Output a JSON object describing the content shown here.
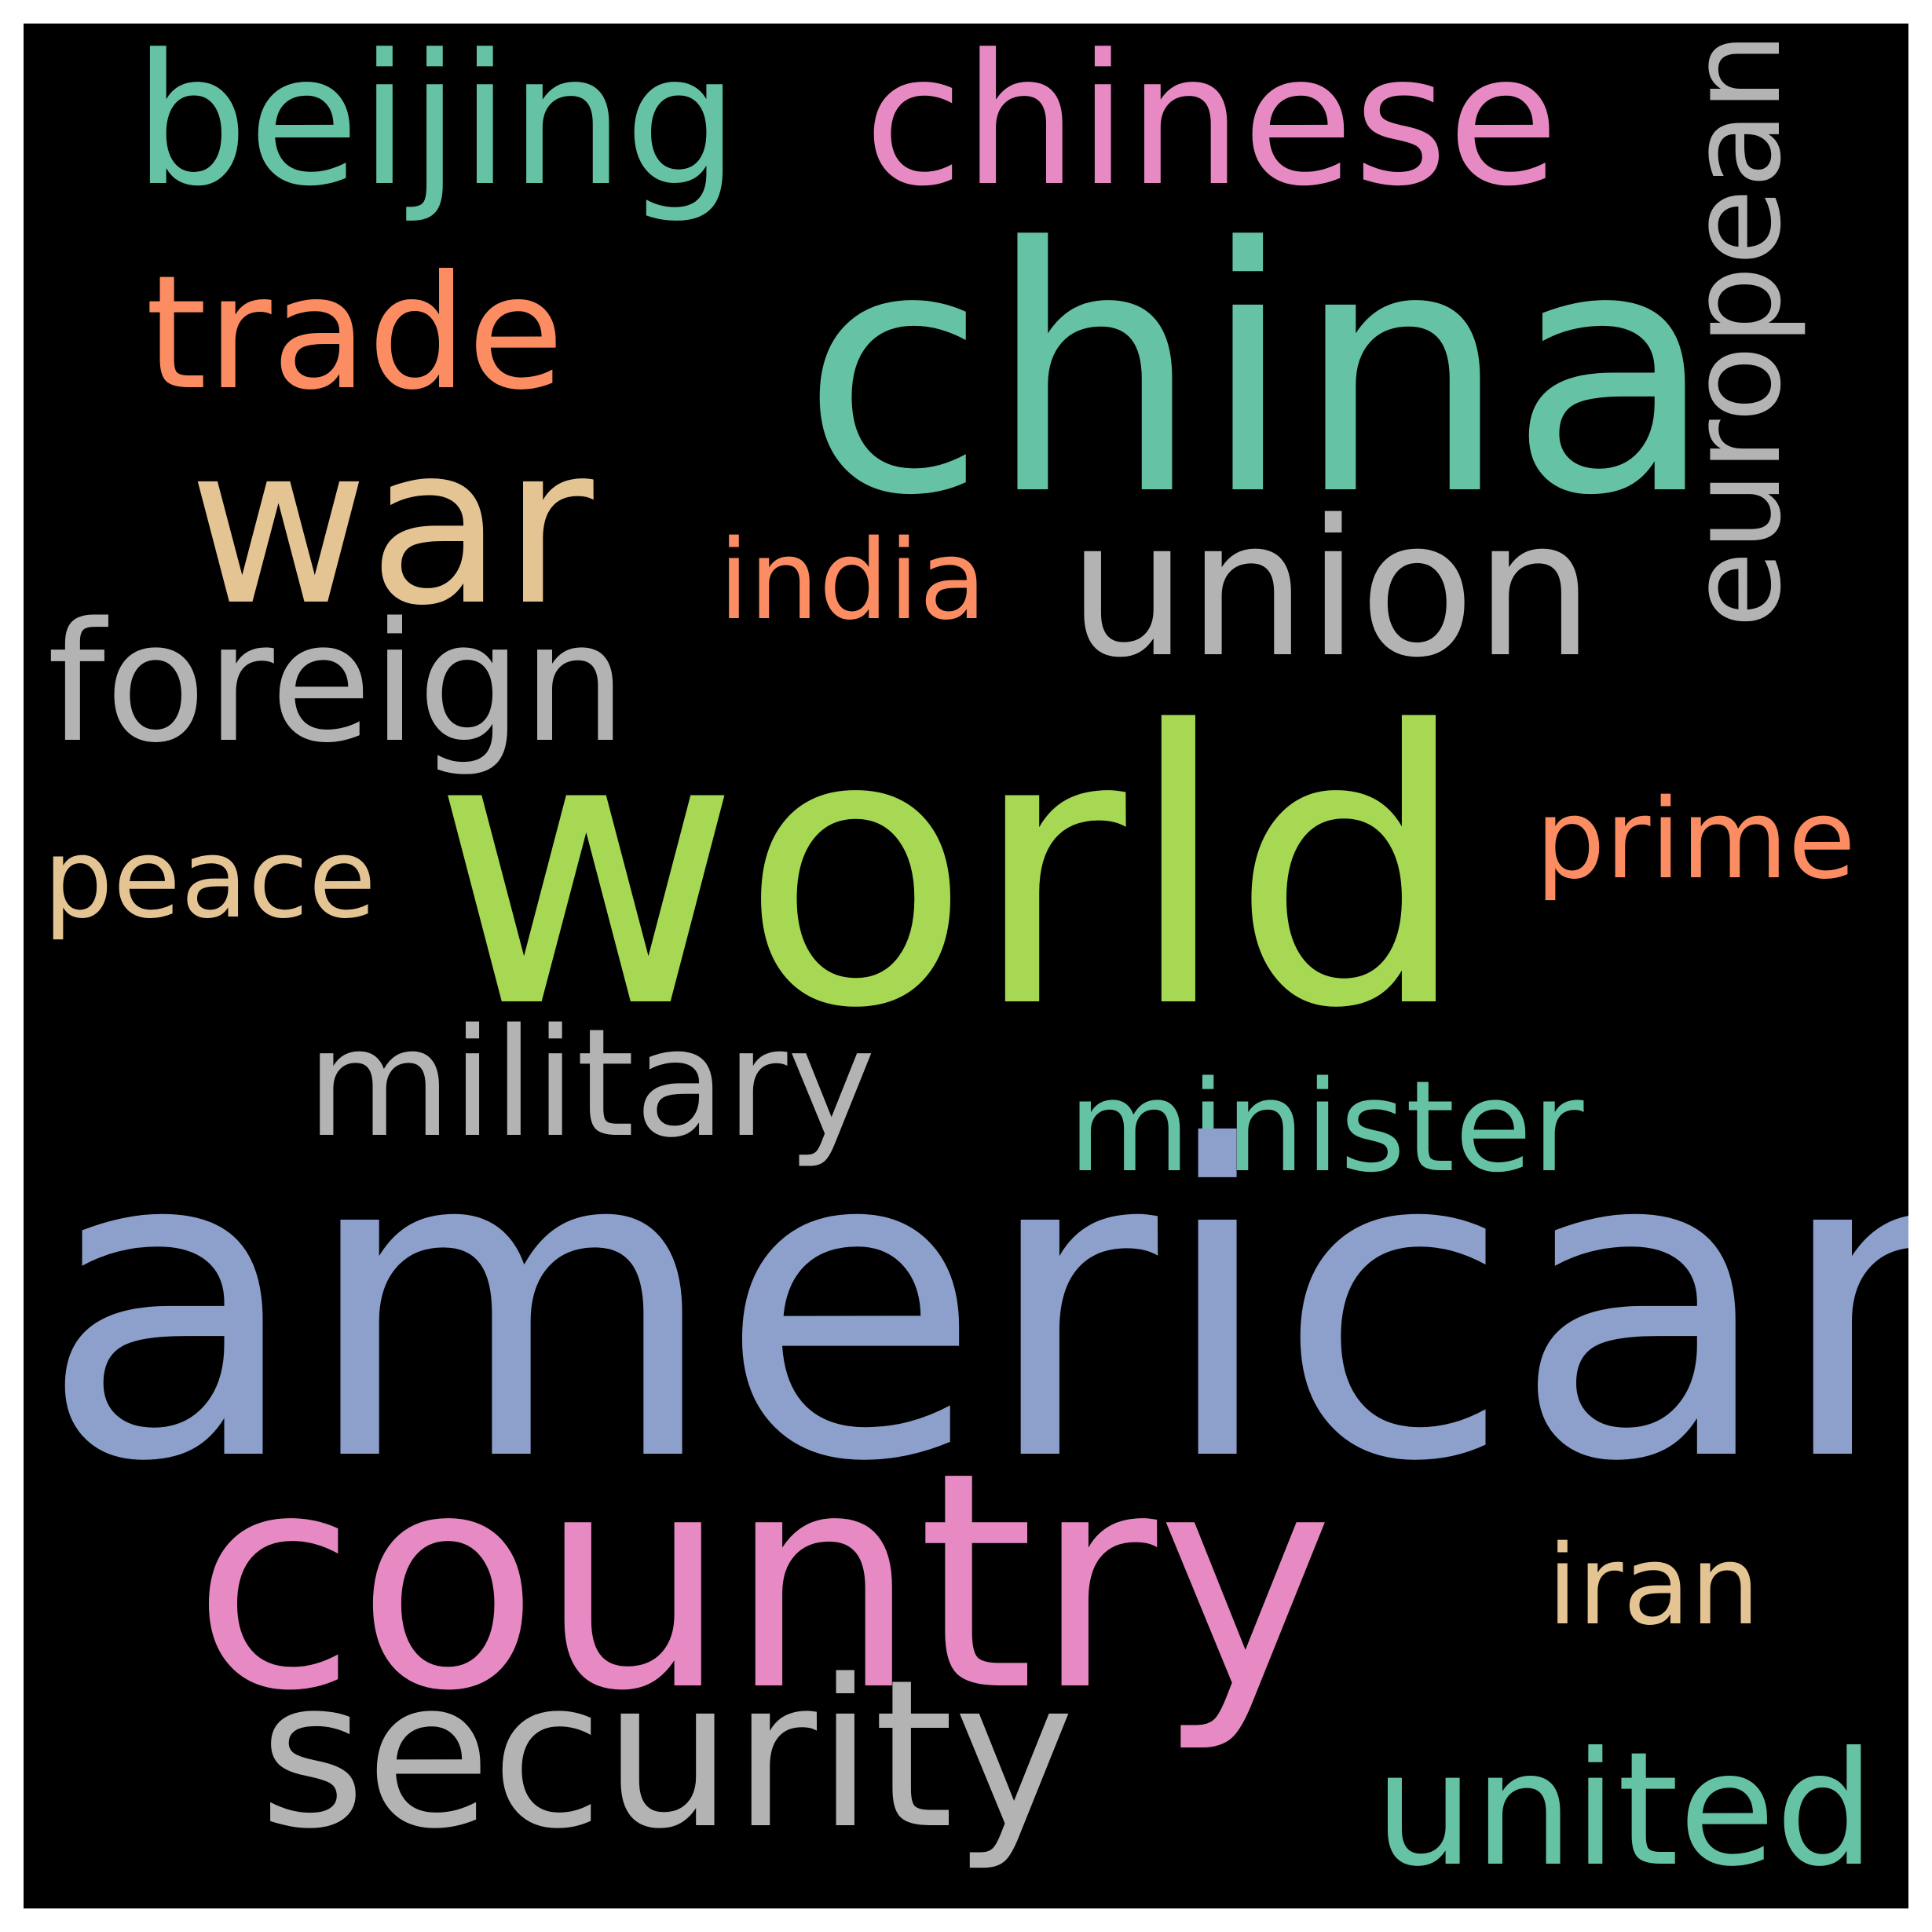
{
  "wordcloud": {
    "background": "#000000",
    "words": [
      {
        "id": "beijing",
        "text": "beijing",
        "color": "#66c2a5",
        "orientation": "horizontal"
      },
      {
        "id": "chinese",
        "text": "chinese",
        "color": "#e78ac3",
        "orientation": "horizontal"
      },
      {
        "id": "trade",
        "text": "trade",
        "color": "#fc8d62",
        "orientation": "horizontal"
      },
      {
        "id": "china",
        "text": "china",
        "color": "#66c2a5",
        "orientation": "horizontal"
      },
      {
        "id": "european",
        "text": "european",
        "color": "#b3b3b3",
        "orientation": "vertical"
      },
      {
        "id": "war",
        "text": "war",
        "color": "#e5c494",
        "orientation": "horizontal"
      },
      {
        "id": "india",
        "text": "india",
        "color": "#fc8d62",
        "orientation": "horizontal"
      },
      {
        "id": "union",
        "text": "union",
        "color": "#b3b3b3",
        "orientation": "horizontal"
      },
      {
        "id": "foreign",
        "text": "foreign",
        "color": "#b3b3b3",
        "orientation": "horizontal"
      },
      {
        "id": "world",
        "text": "world",
        "color": "#a6d854",
        "orientation": "horizontal"
      },
      {
        "id": "prime",
        "text": "prime",
        "color": "#fc8d62",
        "orientation": "horizontal"
      },
      {
        "id": "peace",
        "text": "peace",
        "color": "#e5c494",
        "orientation": "horizontal"
      },
      {
        "id": "military",
        "text": "military",
        "color": "#b3b3b3",
        "orientation": "horizontal"
      },
      {
        "id": "minister",
        "text": "minister",
        "color": "#66c2a5",
        "orientation": "horizontal"
      },
      {
        "id": "american",
        "text": "american",
        "color": "#8da0cb",
        "orientation": "horizontal"
      },
      {
        "id": "country",
        "text": "country",
        "color": "#e78ac3",
        "orientation": "horizontal"
      },
      {
        "id": "iran",
        "text": "iran",
        "color": "#e5c494",
        "orientation": "horizontal"
      },
      {
        "id": "security",
        "text": "security",
        "color": "#b3b3b3",
        "orientation": "horizontal"
      },
      {
        "id": "united",
        "text": "united",
        "color": "#66c2a5",
        "orientation": "horizontal"
      }
    ]
  }
}
